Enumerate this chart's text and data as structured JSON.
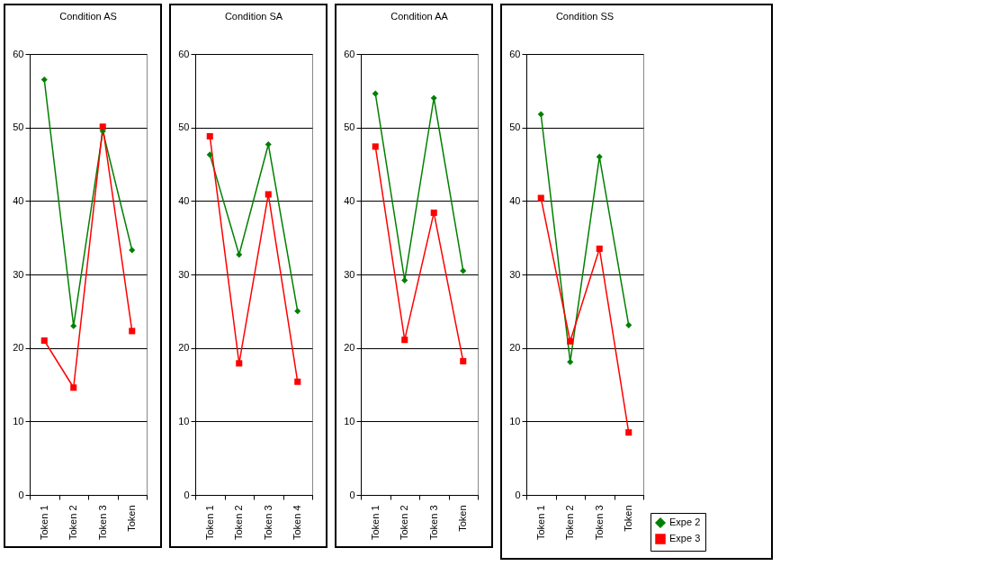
{
  "chart_data": [
    {
      "type": "line",
      "title": "Condition AS",
      "categories": [
        "Token 1",
        "Token 2",
        "Token 3",
        "Token"
      ],
      "ylim": [
        0,
        60
      ],
      "yticks": [
        0,
        10,
        20,
        30,
        40,
        50,
        60
      ],
      "grid": "y",
      "legend": false,
      "series": [
        {
          "color": "#008000",
          "marker": "diamond",
          "values": [
            56.5,
            23,
            49.5,
            33.3
          ]
        },
        {
          "color": "#ff0000",
          "marker": "square",
          "values": [
            21,
            14.6,
            50.1,
            22.3
          ]
        }
      ]
    },
    {
      "type": "line",
      "title": "Condition SA",
      "categories": [
        "Token 1",
        "Token 2",
        "Token 3",
        "Token 4"
      ],
      "ylim": [
        0,
        60
      ],
      "yticks": [
        0,
        10,
        20,
        30,
        40,
        50,
        60
      ],
      "grid": "y",
      "legend": false,
      "series": [
        {
          "color": "#008000",
          "marker": "diamond",
          "values": [
            46.3,
            32.7,
            47.7,
            25
          ]
        },
        {
          "color": "#ff0000",
          "marker": "square",
          "values": [
            48.8,
            17.9,
            40.9,
            15.4
          ]
        }
      ]
    },
    {
      "type": "line",
      "title": "Condition AA",
      "categories": [
        "Token 1",
        "Token 2",
        "Token 3",
        "Token"
      ],
      "ylim": [
        0,
        60
      ],
      "yticks": [
        0,
        10,
        20,
        30,
        40,
        50,
        60
      ],
      "grid": "y",
      "legend": false,
      "series": [
        {
          "color": "#008000",
          "marker": "diamond",
          "values": [
            54.6,
            29.2,
            54,
            30.5
          ]
        },
        {
          "color": "#ff0000",
          "marker": "square",
          "values": [
            47.4,
            21.1,
            38.4,
            18.2
          ]
        }
      ]
    },
    {
      "type": "line",
      "title": "Condition SS",
      "categories": [
        "Token 1",
        "Token 2",
        "Token 3",
        "Token"
      ],
      "ylim": [
        0,
        60
      ],
      "yticks": [
        0,
        10,
        20,
        30,
        40,
        50,
        60
      ],
      "grid": "y",
      "legend": "bottom right",
      "series": [
        {
          "name": "Expe 2",
          "color": "#008000",
          "marker": "diamond",
          "values": [
            51.8,
            18.1,
            46,
            23.1
          ]
        },
        {
          "name": "Expe 3",
          "color": "#ff0000",
          "marker": "square",
          "values": [
            40.4,
            20.9,
            33.5,
            8.5
          ]
        }
      ]
    }
  ]
}
